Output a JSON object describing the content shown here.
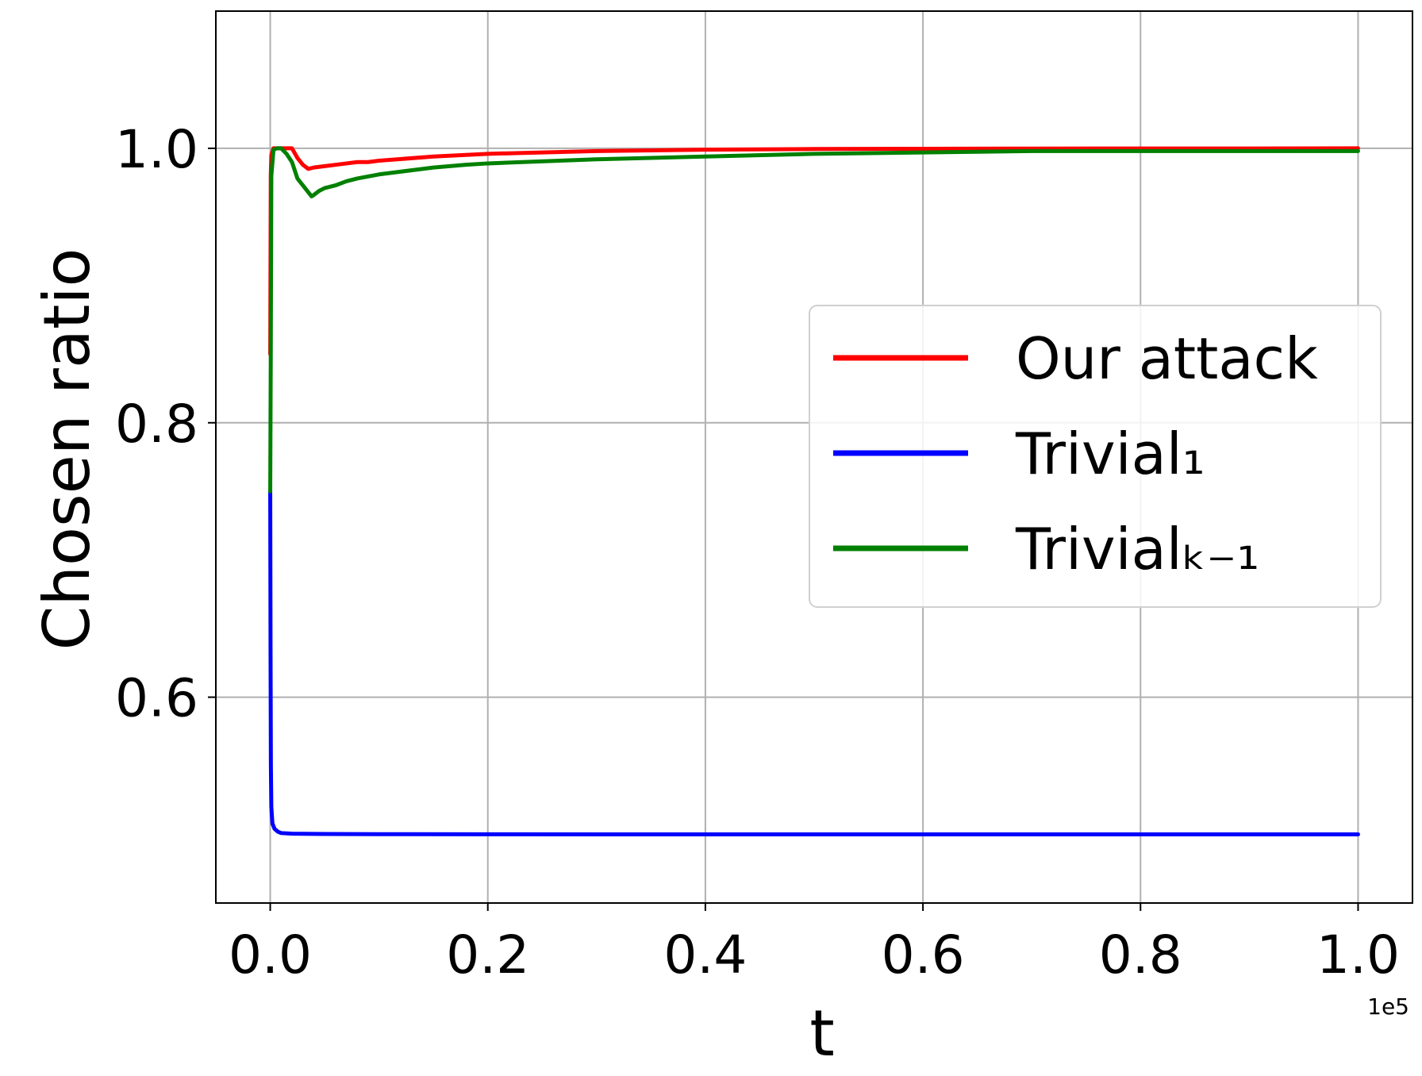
{
  "chart_data": {
    "type": "line",
    "title": "",
    "xlabel": "t",
    "ylabel": "Chosen ratio",
    "x_offset_label": "1e5",
    "xlim": [
      -0.05,
      1.05
    ],
    "ylim": [
      0.45,
      1.1
    ],
    "x_ticks": [
      "0.0",
      "0.2",
      "0.4",
      "0.6",
      "0.8",
      "1.0"
    ],
    "x_tick_values": [
      0.0,
      0.2,
      0.4,
      0.6,
      0.8,
      1.0
    ],
    "y_ticks": [
      "0.6",
      "0.8",
      "1.0"
    ],
    "y_tick_values": [
      0.6,
      0.8,
      1.0
    ],
    "grid": true,
    "legend_position": "center-right",
    "series": [
      {
        "name": "Our attack",
        "color": "#ff0000",
        "x": [
          0.0,
          0.0005,
          0.001,
          0.003,
          0.006,
          0.01,
          0.015,
          0.02,
          0.025,
          0.03,
          0.035,
          0.04,
          0.05,
          0.06,
          0.07,
          0.08,
          0.09,
          0.1,
          0.15,
          0.2,
          0.3,
          0.4,
          0.5,
          0.6,
          0.7,
          0.8,
          0.9,
          1.0
        ],
        "values": [
          0.85,
          0.98,
          0.995,
          1.0,
          1.0,
          1.0,
          1.0,
          1.0,
          0.993,
          0.988,
          0.985,
          0.986,
          0.987,
          0.988,
          0.989,
          0.99,
          0.99,
          0.991,
          0.994,
          0.996,
          0.998,
          0.999,
          0.9995,
          0.9997,
          0.9998,
          0.9999,
          0.9999,
          1.0
        ]
      },
      {
        "name": "Trivial₁",
        "color": "#0000ff",
        "x": [
          0.0,
          0.0003,
          0.0006,
          0.001,
          0.002,
          0.004,
          0.007,
          0.01,
          0.02,
          0.05,
          0.1,
          0.2,
          0.4,
          0.6,
          0.8,
          1.0
        ],
        "values": [
          0.75,
          0.63,
          0.55,
          0.52,
          0.508,
          0.504,
          0.502,
          0.501,
          0.5005,
          0.5003,
          0.5002,
          0.5001,
          0.5,
          0.5,
          0.5,
          0.5
        ]
      },
      {
        "name": "Trivialₖ₋₁",
        "color": "#008000",
        "x": [
          0.0,
          0.0005,
          0.001,
          0.003,
          0.006,
          0.01,
          0.015,
          0.02,
          0.025,
          0.03,
          0.035,
          0.038,
          0.04,
          0.045,
          0.05,
          0.06,
          0.07,
          0.08,
          0.1,
          0.15,
          0.18,
          0.2,
          0.3,
          0.4,
          0.5,
          0.6,
          0.7,
          0.8,
          0.9,
          1.0
        ],
        "values": [
          0.75,
          0.85,
          0.98,
          0.999,
          1.0,
          1.0,
          0.996,
          0.99,
          0.978,
          0.973,
          0.968,
          0.965,
          0.966,
          0.969,
          0.971,
          0.973,
          0.976,
          0.978,
          0.981,
          0.986,
          0.988,
          0.989,
          0.992,
          0.994,
          0.996,
          0.997,
          0.998,
          0.998,
          0.998,
          0.998
        ]
      }
    ]
  }
}
